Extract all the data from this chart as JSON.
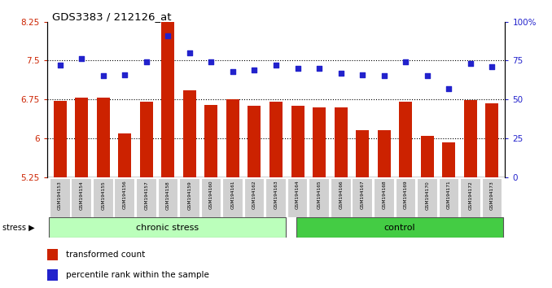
{
  "title": "GDS3383 / 212126_at",
  "samples": [
    "GSM194153",
    "GSM194154",
    "GSM194155",
    "GSM194156",
    "GSM194157",
    "GSM194158",
    "GSM194159",
    "GSM194160",
    "GSM194161",
    "GSM194162",
    "GSM194163",
    "GSM194164",
    "GSM194165",
    "GSM194166",
    "GSM194167",
    "GSM194168",
    "GSM194169",
    "GSM194170",
    "GSM194171",
    "GSM194172",
    "GSM194173"
  ],
  "bar_values": [
    6.72,
    6.78,
    6.78,
    6.1,
    6.7,
    8.3,
    6.93,
    6.65,
    6.75,
    6.62,
    6.7,
    6.62,
    6.6,
    6.6,
    6.15,
    6.15,
    6.7,
    6.05,
    5.92,
    6.73,
    6.68
  ],
  "percentile_values": [
    72,
    76,
    65,
    66,
    74,
    91,
    80,
    74,
    68,
    69,
    72,
    70,
    70,
    67,
    66,
    65,
    74,
    65,
    57,
    73,
    71
  ],
  "chronic_stress_count": 11,
  "control_count": 10,
  "ylim_left": [
    5.25,
    8.25
  ],
  "ylim_right": [
    0,
    100
  ],
  "yticks_left": [
    5.25,
    6.0,
    6.75,
    7.5,
    8.25
  ],
  "yticks_right": [
    0,
    25,
    50,
    75,
    100
  ],
  "ytick_labels_left": [
    "5.25",
    "6",
    "6.75",
    "7.5",
    "8.25"
  ],
  "ytick_labels_right": [
    "0",
    "25",
    "50",
    "75",
    "100%"
  ],
  "hlines": [
    6.0,
    6.75,
    7.5
  ],
  "bar_color": "#cc2200",
  "dot_color": "#2222cc",
  "chronic_stress_color": "#bbffbb",
  "control_color": "#44cc44",
  "chronic_stress_label": "chronic stress",
  "control_label": "control",
  "stress_label": "stress",
  "legend_bar_label": "transformed count",
  "legend_dot_label": "percentile rank within the sample",
  "plot_bg_color": "#ffffff",
  "tick_label_color_left": "#cc2200",
  "tick_label_color_right": "#2222cc",
  "xtick_bg_color": "#c8c8c8"
}
